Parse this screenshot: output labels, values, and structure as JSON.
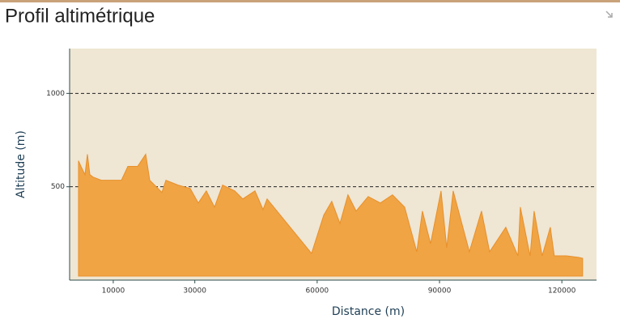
{
  "chart_data": {
    "type": "area",
    "title": "Profil altimétrique",
    "x_label": "Distance (m)",
    "y_label": "Altitude (m)",
    "x": [
      1490,
      2080,
      3075,
      3670,
      4270,
      5060,
      7040,
      12000,
      13590,
      15970,
      17960,
      18950,
      21920,
      22910,
      25890,
      28870,
      30850,
      32830,
      34820,
      36800,
      39780,
      41770,
      44740,
      46730,
      47720,
      58630,
      61610,
      63590,
      65580,
      67560,
      69550,
      72520,
      75500,
      78470,
      81450,
      84420,
      85810,
      87800,
      90380,
      91770,
      93360,
      97320,
      100300,
      102280,
      106250,
      109230,
      109820,
      112200,
      113190,
      115170,
      117160,
      118150,
      121130,
      124100,
      125090
    ],
    "values": [
      639,
      609,
      565,
      674,
      565,
      552,
      535,
      535,
      609,
      609,
      674,
      535,
      470,
      535,
      509,
      491,
      413,
      478,
      391,
      509,
      478,
      435,
      478,
      378,
      435,
      143,
      348,
      422,
      304,
      457,
      370,
      448,
      413,
      457,
      391,
      152,
      370,
      196,
      478,
      174,
      478,
      152,
      370,
      152,
      283,
      130,
      391,
      130,
      370,
      130,
      283,
      130,
      130,
      122,
      117
    ],
    "color": "#f0a444",
    "xlim": [
      -700,
      128500
    ],
    "ylim": [
      0,
      1240
    ],
    "xticks": [
      10000,
      30000,
      60000,
      90000,
      120000
    ],
    "yticks": [
      500,
      1000
    ],
    "grid": true
  }
}
